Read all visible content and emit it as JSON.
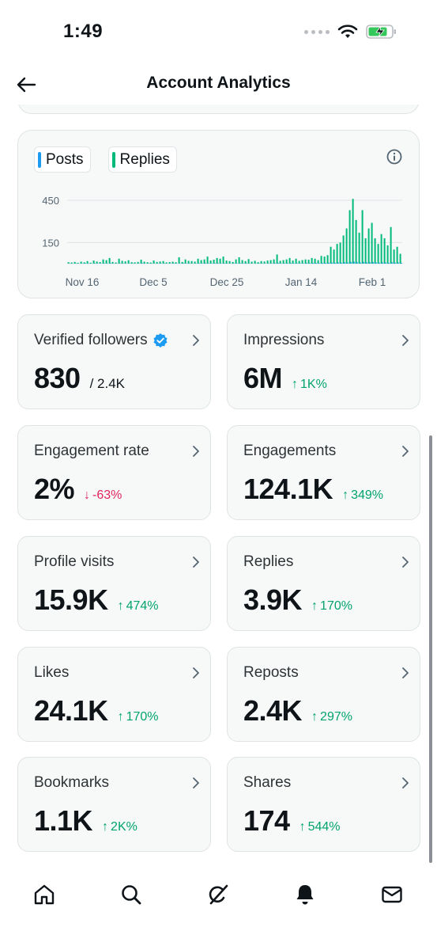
{
  "status_bar": {
    "time": "1:49"
  },
  "header": {
    "title": "Account Analytics"
  },
  "chart_data": {
    "type": "bar",
    "legend": [
      "Posts",
      "Replies"
    ],
    "colors": {
      "posts": "#1d9bf0",
      "replies": "#00ba7c"
    },
    "y_ticks": [
      "450",
      "150"
    ],
    "y_tick_values": [
      450,
      150
    ],
    "x_ticks": [
      "Nov 16",
      "Dec 5",
      "Dec 25",
      "Jan 14",
      "Feb 1"
    ],
    "series": [
      {
        "name": "Replies",
        "values": [
          10,
          8,
          12,
          6,
          14,
          9,
          18,
          7,
          22,
          15,
          11,
          30,
          25,
          40,
          12,
          8,
          35,
          20,
          16,
          24,
          10,
          9,
          12,
          28,
          14,
          10,
          8,
          22,
          12,
          15,
          18,
          9,
          11,
          14,
          10,
          45,
          12,
          30,
          20,
          18,
          14,
          35,
          25,
          30,
          50,
          22,
          28,
          40,
          35,
          50,
          22,
          18,
          12,
          30,
          45,
          25,
          18,
          32,
          14,
          20,
          10,
          18,
          15,
          22,
          25,
          30,
          65,
          20,
          25,
          30,
          40,
          22,
          35,
          20,
          25,
          30,
          28,
          40,
          35,
          25,
          55,
          50,
          60,
          120,
          100,
          140,
          150,
          200,
          250,
          380,
          460,
          310,
          220,
          380,
          180,
          250,
          290,
          180,
          140,
          210,
          180,
          130,
          260,
          100,
          120,
          70
        ]
      },
      {
        "name": "Posts",
        "values": [
          2,
          1,
          3,
          1,
          2,
          4,
          2,
          1,
          3,
          2,
          1,
          3,
          2,
          4,
          1,
          2,
          3,
          2,
          1,
          2,
          3,
          1,
          2,
          4,
          1,
          2,
          3,
          1,
          2,
          2,
          3,
          1,
          2,
          3,
          1,
          2,
          4,
          2,
          3,
          1,
          2,
          3,
          2,
          4,
          3,
          2,
          3,
          4,
          2,
          3,
          2,
          1,
          3,
          2,
          4,
          2,
          3,
          2,
          1,
          2,
          3,
          2,
          1,
          3,
          2,
          4,
          5,
          2,
          3,
          4,
          5,
          3,
          4,
          3,
          2,
          5,
          4,
          6,
          5,
          4,
          6,
          5,
          7,
          8,
          6,
          9,
          7,
          10,
          8,
          12,
          14,
          10,
          8,
          12,
          9,
          10,
          11,
          8,
          7,
          9,
          8,
          6,
          10,
          7,
          8,
          6
        ]
      }
    ]
  },
  "metrics": [
    {
      "label": "Verified followers",
      "value": "830",
      "sub": "/ 2.4K",
      "verified": true
    },
    {
      "label": "Impressions",
      "value": "6M",
      "delta": "1K%",
      "direction": "up"
    },
    {
      "label": "Engagement rate",
      "value": "2%",
      "delta": "-63%",
      "direction": "down"
    },
    {
      "label": "Engagements",
      "value": "124.1K",
      "delta": "349%",
      "direction": "up"
    },
    {
      "label": "Profile visits",
      "value": "15.9K",
      "delta": "474%",
      "direction": "up"
    },
    {
      "label": "Replies",
      "value": "3.9K",
      "delta": "170%",
      "direction": "up"
    },
    {
      "label": "Likes",
      "value": "24.1K",
      "delta": "170%",
      "direction": "up"
    },
    {
      "label": "Reposts",
      "value": "2.4K",
      "delta": "297%",
      "direction": "up"
    },
    {
      "label": "Bookmarks",
      "value": "1.1K",
      "delta": "2K%",
      "direction": "up"
    },
    {
      "label": "Shares",
      "value": "174",
      "delta": "544%",
      "direction": "up"
    }
  ],
  "arrows": {
    "up": "↑",
    "down": "↓"
  },
  "nav_items": [
    "home-icon",
    "search-icon",
    "grok-icon",
    "notifications-icon",
    "messages-icon"
  ]
}
